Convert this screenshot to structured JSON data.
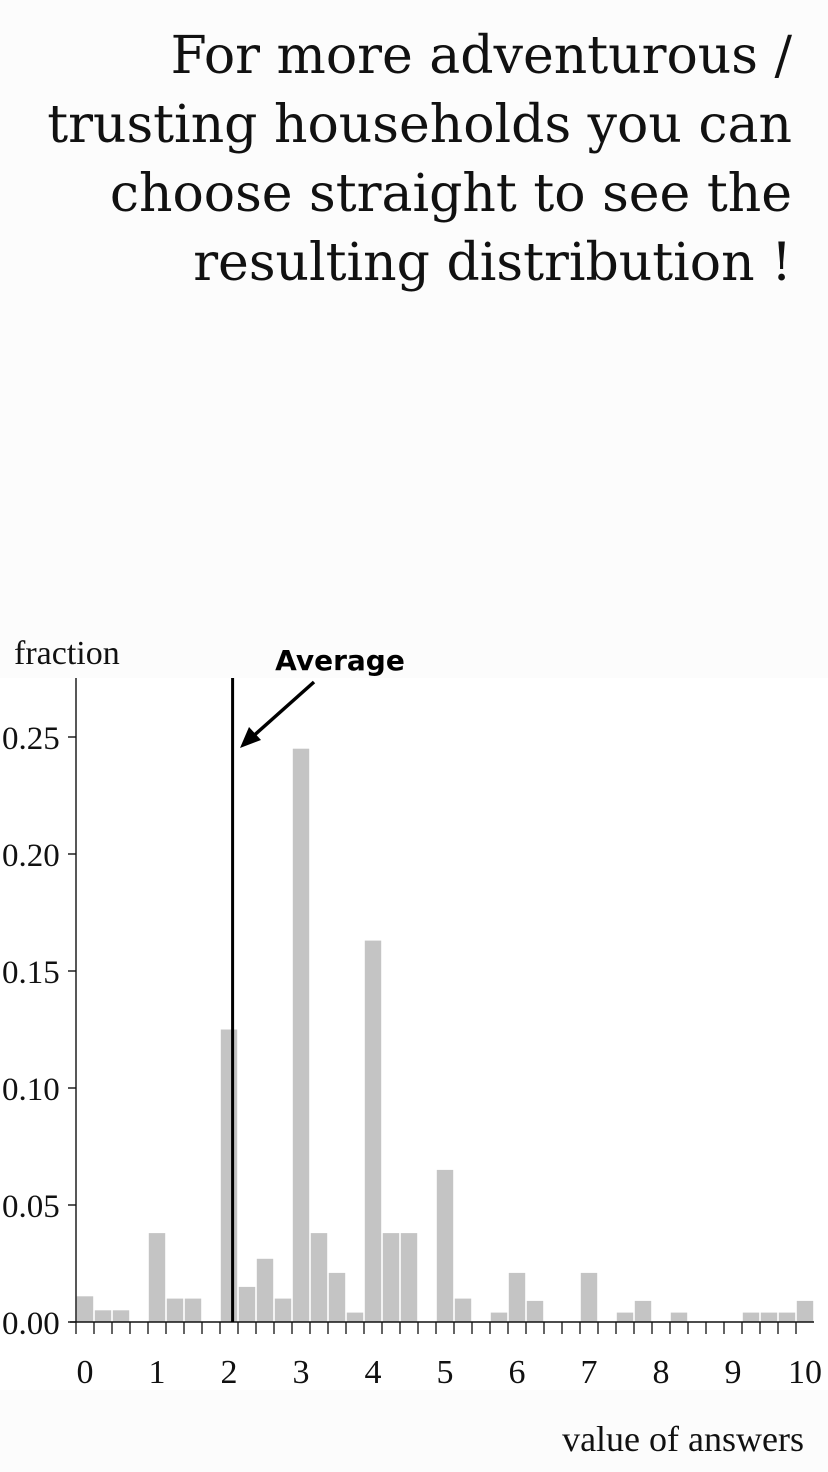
{
  "headline": {
    "lines": [
      "For more adventurous /",
      "trusting households you can",
      "choose straight to see the",
      "resulting distribution !"
    ]
  },
  "colors": {
    "bar": "#c4c4c4",
    "axis": "#111111",
    "average_line": "#000000"
  },
  "chart_data": {
    "type": "bar",
    "ylabel": "fraction",
    "xlabel": "value of answers",
    "xlim": [
      0,
      10
    ],
    "ylim": [
      0,
      0.275
    ],
    "y_ticks": [
      0.0,
      0.05,
      0.1,
      0.15,
      0.2,
      0.25
    ],
    "y_tick_labels": [
      "0.00",
      "0.05",
      "0.10",
      "0.15",
      "0.20",
      "0.25"
    ],
    "x_ticks": [
      0,
      1,
      2,
      3,
      4,
      5,
      6,
      7,
      8,
      9,
      10
    ],
    "x_tick_labels": [
      "0",
      "1",
      "2",
      "3",
      "4",
      "5",
      "6",
      "7",
      "8",
      "9",
      "10"
    ],
    "bin_width": 0.25,
    "x": [
      0,
      0.25,
      0.5,
      0.75,
      1,
      1.25,
      1.5,
      1.75,
      2,
      2.25,
      2.5,
      2.75,
      3,
      3.25,
      3.5,
      3.75,
      4,
      4.25,
      4.5,
      4.75,
      5,
      5.25,
      5.5,
      5.75,
      6,
      6.25,
      6.5,
      6.75,
      7,
      7.25,
      7.5,
      7.75,
      8,
      8.25,
      8.5,
      8.75,
      9,
      9.25,
      9.5,
      9.75,
      10
    ],
    "values": [
      0.011,
      0.005,
      0.005,
      0,
      0.038,
      0.01,
      0.01,
      0,
      0.125,
      0.015,
      0.027,
      0.01,
      0.245,
      0.038,
      0.021,
      0.004,
      0.163,
      0.038,
      0.038,
      0,
      0.065,
      0.01,
      0,
      0.004,
      0.021,
      0.009,
      0,
      0,
      0.021,
      0,
      0.004,
      0.009,
      0,
      0.004,
      0,
      0,
      0,
      0.004,
      0.004,
      0.004,
      0.009
    ],
    "grid": false,
    "average": {
      "label": "Average",
      "x": 2.05
    }
  }
}
